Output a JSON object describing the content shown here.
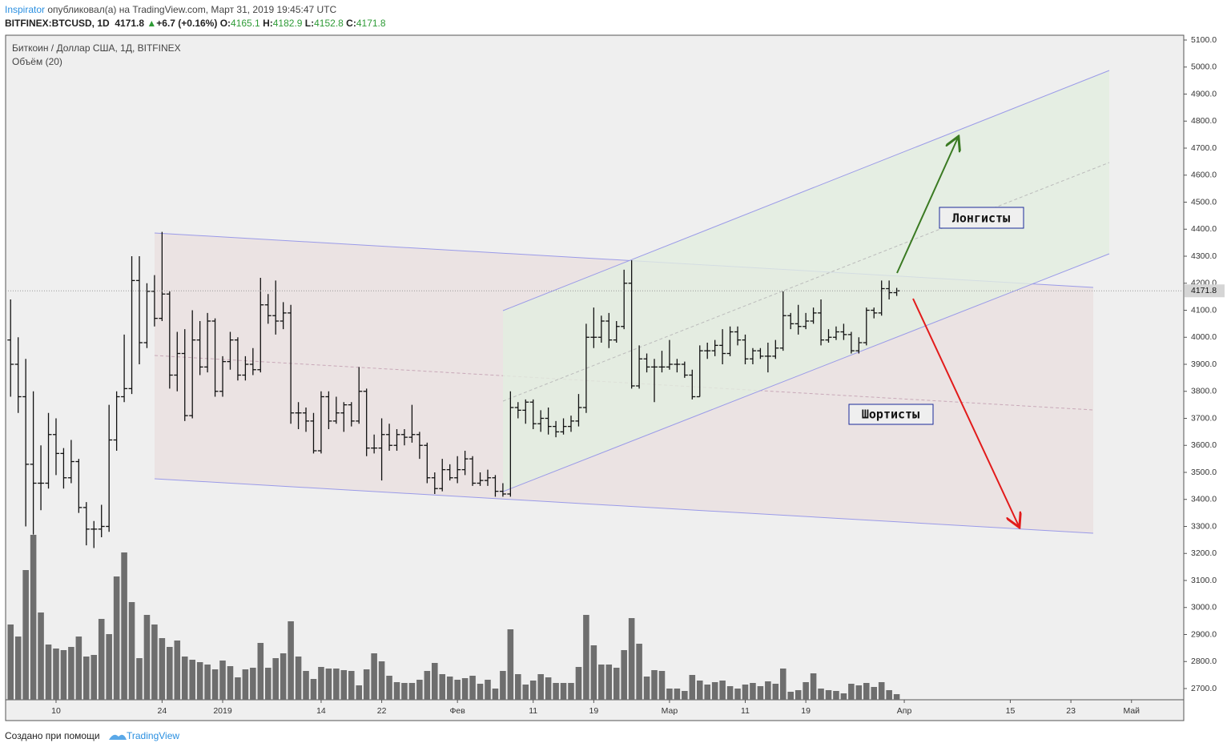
{
  "header": {
    "author": "Inspirator",
    "published": "опубликовал(а) на TradingView.com, Март 31, 2019 19:45:47 UTC",
    "symbol": "BITFINEX:BTCUSD, 1D",
    "arrow": "▲",
    "change": "+6.7 (+0.16%)",
    "o": "O:",
    "h": "H:",
    "l": "L:",
    "c": "C:"
  },
  "chart_data": {
    "type": "ohlc",
    "title": "Биткоин / Доллар США, 1Д, BITFINEX",
    "volume_title": "Объём (20)",
    "annotations": [
      "Лонгисты",
      "Шортисты"
    ],
    "x": [
      -6,
      -5,
      -4,
      -3,
      -2,
      -1,
      0,
      1,
      2,
      3,
      4,
      5,
      6,
      7,
      8,
      9,
      10,
      11,
      12,
      13,
      14,
      15,
      16,
      17,
      18,
      19,
      20,
      21,
      22,
      23,
      24,
      25,
      26,
      27,
      28,
      29,
      30,
      31,
      32,
      33,
      34,
      35,
      36,
      37,
      38,
      39,
      40,
      41,
      42,
      43,
      44,
      45,
      46,
      47,
      48,
      49,
      50,
      51,
      52,
      53,
      54,
      55,
      56,
      57,
      58,
      59,
      60,
      61,
      62,
      63,
      64,
      65,
      66,
      67,
      68,
      69,
      70,
      71,
      72,
      73,
      74,
      75,
      76,
      77,
      78,
      79,
      80,
      81,
      82,
      83,
      84,
      85,
      86,
      87,
      88,
      89,
      90,
      91,
      92,
      93,
      94,
      95,
      96,
      97,
      98,
      99,
      100,
      101,
      102,
      103,
      104,
      105,
      106,
      107,
      108,
      109,
      110,
      111
    ],
    "open": [
      3990,
      3900,
      3780,
      3530,
      3460,
      3460,
      3640,
      3570,
      3480,
      3540,
      3370,
      3290,
      3290,
      3300,
      3620,
      3780,
      3810,
      4210,
      3980,
      4170,
      4070,
      4160,
      3860,
      3940,
      3710,
      3990,
      3890,
      4060,
      3800,
      3910,
      3990,
      3860,
      3900,
      3880,
      4120,
      4080,
      4060,
      4090,
      3720,
      3720,
      3690,
      3580,
      3780,
      3690,
      3720,
      3750,
      3690,
      3800,
      3590,
      3590,
      3640,
      3600,
      3640,
      3630,
      3640,
      3600,
      3480,
      3440,
      3510,
      3480,
      3510,
      3550,
      3460,
      3470,
      3480,
      3430,
      3420,
      3740,
      3730,
      3760,
      3680,
      3700,
      3670,
      3650,
      3670,
      3690,
      3740,
      4000,
      4000,
      4060,
      3990,
      4040,
      4200,
      3820,
      3920,
      3890,
      3890,
      3890,
      3900,
      3900,
      3860,
      3780,
      3950,
      3950,
      3970,
      3940,
      4020,
      3990,
      3920,
      3950,
      3930,
      3930,
      3960,
      4080,
      4050,
      4040,
      4060,
      4090,
      3990,
      4000,
      4020,
      4010,
      3950,
      3980,
      4100,
      4090,
      4180,
      4165.1
    ],
    "high": [
      4140,
      4000,
      3920,
      3800,
      3600,
      3720,
      3700,
      3590,
      3620,
      3550,
      3390,
      3320,
      3380,
      3750,
      3800,
      4010,
      4300,
      4300,
      4200,
      4230,
      4390,
      4170,
      4020,
      4030,
      4100,
      4060,
      4090,
      4070,
      3930,
      4020,
      4000,
      3930,
      3960,
      4220,
      4160,
      4210,
      4130,
      4120,
      3760,
      3740,
      3720,
      3800,
      3800,
      3780,
      3760,
      3760,
      3890,
      3810,
      3640,
      3700,
      3680,
      3660,
      3660,
      3750,
      3650,
      3610,
      3500,
      3550,
      3530,
      3560,
      3580,
      3560,
      3500,
      3510,
      3490,
      3460,
      3800,
      3760,
      3770,
      3770,
      3730,
      3740,
      3690,
      3700,
      3710,
      3790,
      4050,
      4110,
      4080,
      4090,
      4060,
      4250,
      4285,
      3970,
      3940,
      3920,
      3950,
      3990,
      3920,
      3910,
      3880,
      3970,
      3980,
      3990,
      4030,
      4040,
      4040,
      4010,
      3960,
      3960,
      3980,
      3990,
      4170,
      4090,
      4120,
      4090,
      4110,
      4140,
      4030,
      4040,
      4050,
      4020,
      4000,
      4110,
      4110,
      4210,
      4210,
      4182.9
    ],
    "low": [
      3780,
      3720,
      3300,
      3270,
      3360,
      3440,
      3490,
      3440,
      3460,
      3350,
      3230,
      3220,
      3260,
      3280,
      3580,
      3760,
      3790,
      3900,
      3960,
      4040,
      4060,
      3810,
      3800,
      3690,
      3700,
      3860,
      3870,
      3780,
      3780,
      3880,
      3840,
      3840,
      3860,
      3870,
      4050,
      4010,
      4030,
      3680,
      3660,
      3650,
      3570,
      3570,
      3660,
      3680,
      3650,
      3670,
      3680,
      3560,
      3570,
      3470,
      3580,
      3580,
      3600,
      3610,
      3550,
      3460,
      3420,
      3430,
      3470,
      3460,
      3490,
      3450,
      3450,
      3450,
      3410,
      3410,
      3410,
      3700,
      3680,
      3660,
      3650,
      3640,
      3630,
      3640,
      3650,
      3670,
      3720,
      3960,
      3980,
      3960,
      3980,
      4030,
      3810,
      3810,
      3870,
      3760,
      3870,
      3880,
      3870,
      3850,
      3770,
      3780,
      3920,
      3930,
      3900,
      3930,
      3970,
      3900,
      3900,
      3920,
      3870,
      3920,
      3950,
      4030,
      4010,
      4030,
      4050,
      3970,
      3980,
      3990,
      3990,
      3940,
      3940,
      3970,
      4070,
      4080,
      4140,
      4152.8
    ],
    "close": [
      3900,
      3780,
      3530,
      3460,
      3460,
      3640,
      3570,
      3480,
      3540,
      3370,
      3290,
      3290,
      3300,
      3620,
      3780,
      3810,
      4210,
      3980,
      4170,
      4070,
      4160,
      3860,
      3940,
      3710,
      3990,
      3890,
      4060,
      3800,
      3910,
      3990,
      3860,
      3900,
      3880,
      4120,
      4080,
      4060,
      4090,
      3720,
      3720,
      3690,
      3580,
      3780,
      3690,
      3720,
      3750,
      3690,
      3800,
      3590,
      3590,
      3640,
      3600,
      3640,
      3630,
      3640,
      3600,
      3480,
      3440,
      3510,
      3480,
      3510,
      3550,
      3460,
      3470,
      3480,
      3430,
      3420,
      3740,
      3730,
      3760,
      3680,
      3700,
      3670,
      3650,
      3670,
      3690,
      3740,
      4000,
      4000,
      4060,
      3990,
      4040,
      4200,
      3820,
      3920,
      3890,
      3890,
      3890,
      3900,
      3900,
      3860,
      3780,
      3950,
      3950,
      3970,
      3940,
      4020,
      3990,
      3920,
      3950,
      3930,
      3930,
      3960,
      4080,
      4050,
      4040,
      4060,
      4090,
      3990,
      4000,
      4020,
      4010,
      3950,
      3980,
      4100,
      4090,
      4180,
      4165.1,
      4171.8
    ],
    "volume": [
      94,
      79,
      162,
      206,
      109,
      69,
      64,
      62,
      66,
      79,
      54,
      56,
      101,
      82,
      154,
      184,
      122,
      52,
      106,
      94,
      77,
      66,
      74,
      54,
      50,
      47,
      44,
      38,
      49,
      42,
      28,
      38,
      40,
      71,
      40,
      52,
      58,
      98,
      54,
      36,
      26,
      41,
      39,
      39,
      37,
      36,
      18,
      38,
      58,
      48,
      30,
      22,
      21,
      21,
      25,
      36,
      46,
      32,
      29,
      25,
      27,
      30,
      20,
      25,
      14,
      36,
      88,
      32,
      19,
      24,
      32,
      28,
      21,
      21,
      21,
      41,
      106,
      68,
      44,
      44,
      40,
      62,
      102,
      70,
      29,
      37,
      36,
      14,
      14,
      11,
      31,
      24,
      19,
      22,
      24,
      17,
      14,
      19,
      21,
      17,
      23,
      20,
      39,
      10,
      12,
      22,
      33,
      14,
      12,
      11,
      8,
      20,
      18,
      21,
      16,
      22,
      12,
      7
    ],
    "volume_lim": [
      0,
      300
    ],
    "color": "#111111",
    "volume_color": "#6e6e6e",
    "xlim": [
      -6.66,
      148.9
    ],
    "xticks": [
      {
        "value": 0,
        "label": "10"
      },
      {
        "value": 14,
        "label": "24"
      },
      {
        "value": 22,
        "label": "2019"
      },
      {
        "value": 35,
        "label": "14"
      },
      {
        "value": 43,
        "label": "22"
      },
      {
        "value": 53,
        "label": "Фев"
      },
      {
        "value": 63,
        "label": "11"
      },
      {
        "value": 71,
        "label": "19"
      },
      {
        "value": 81,
        "label": "Мар"
      },
      {
        "value": 91,
        "label": "11"
      },
      {
        "value": 99,
        "label": "19"
      },
      {
        "value": 112,
        "label": "Апр"
      },
      {
        "value": 126,
        "label": "15"
      },
      {
        "value": 134,
        "label": "23"
      },
      {
        "value": 142,
        "label": "Май"
      }
    ],
    "ylim": [
      2658.5,
      5117.8
    ],
    "yticks": [
      {
        "value": 2700,
        "label": "2700.0"
      },
      {
        "value": 2800,
        "label": "2800.0"
      },
      {
        "value": 2900,
        "label": "2900.0"
      },
      {
        "value": 3000,
        "label": "3000.0"
      },
      {
        "value": 3100,
        "label": "3100.0"
      },
      {
        "value": 3200,
        "label": "3200.0"
      },
      {
        "value": 3300,
        "label": "3300.0"
      },
      {
        "value": 3400,
        "label": "3400.0"
      },
      {
        "value": 3500,
        "label": "3500.0"
      },
      {
        "value": 3600,
        "label": "3600.0"
      },
      {
        "value": 3700,
        "label": "3700.0"
      },
      {
        "value": 3800,
        "label": "3800.0"
      },
      {
        "value": 3900,
        "label": "3900.0"
      },
      {
        "value": 4000,
        "label": "4000.0"
      },
      {
        "value": 4100,
        "label": "4100.0"
      },
      {
        "value": 4200,
        "label": "4200.0"
      },
      {
        "value": 4300,
        "label": "4300.0"
      },
      {
        "value": 4400,
        "label": "4400.0"
      },
      {
        "value": 4500,
        "label": "4500.0"
      },
      {
        "value": 4600,
        "label": "4600.0"
      },
      {
        "value": 4700,
        "label": "4700.0"
      },
      {
        "value": 4800,
        "label": "4800.0"
      },
      {
        "value": 4900,
        "label": "4900.0"
      },
      {
        "value": 5000,
        "label": "5000.0"
      },
      {
        "value": 5100,
        "label": "5100.0"
      }
    ],
    "grid": false
  },
  "footer": {
    "made_with": "Создано при помощи",
    "brand": "TradingView"
  }
}
